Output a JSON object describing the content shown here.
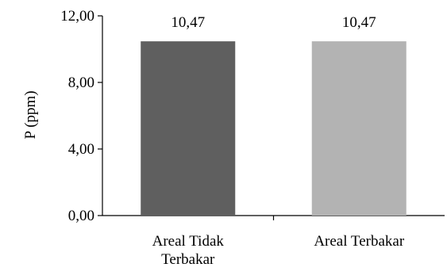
{
  "chart_data": {
    "type": "bar",
    "title": "",
    "xlabel": "",
    "ylabel": "P (ppm)",
    "ylim": [
      0,
      12
    ],
    "yticks": [
      "0,00",
      "4,00",
      "8,00",
      "12,00"
    ],
    "ytick_values": [
      0,
      4,
      8,
      12
    ],
    "categories": [
      {
        "lines": [
          "Areal Tidak",
          "Terbakar"
        ]
      },
      {
        "lines": [
          "Areal Terbakar"
        ]
      }
    ],
    "values": [
      10.47,
      10.47
    ],
    "data_labels": [
      "10,47",
      "10,47"
    ],
    "colors": [
      "#5f5f5f",
      "#b3b3b3"
    ],
    "grid": false,
    "legend": "none"
  }
}
